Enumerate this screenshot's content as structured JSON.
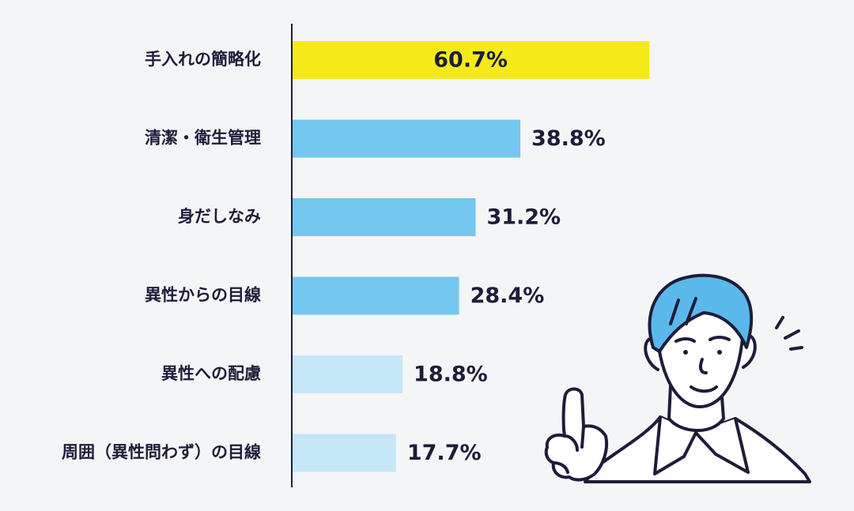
{
  "chart_data": {
    "type": "bar",
    "orientation": "horizontal",
    "categories": [
      "手入れの簡略化",
      "清潔・衛生管理",
      "身だしなみ",
      "異性からの目線",
      "異性への配慮",
      "周囲（異性問わず）の目線"
    ],
    "values": [
      60.7,
      38.8,
      31.2,
      28.4,
      18.8,
      17.7
    ],
    "value_labels": [
      "60.7%",
      "38.8%",
      "31.2%",
      "28.4%",
      "18.8%",
      "17.7%"
    ],
    "bar_colors": [
      "#f5e91a",
      "#74c7ee",
      "#74c7ee",
      "#74c7ee",
      "#c5e7f8",
      "#c5e7f8"
    ],
    "xlim": [
      0,
      100
    ],
    "grid": false,
    "legend": "none"
  },
  "illustration": {
    "icon": "man-pointing-finger-icon",
    "hair_color": "#5bb8ea"
  },
  "colors": {
    "background": "#f4f5f7",
    "text": "#1d1d3a",
    "axis": "#1d1d3a"
  }
}
